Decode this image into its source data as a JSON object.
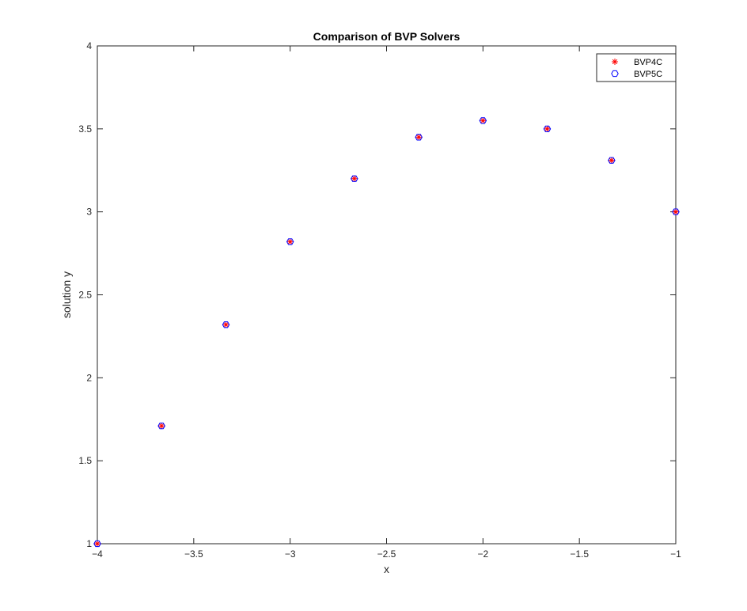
{
  "chart_data": {
    "type": "scatter",
    "title": "Comparison of BVP Solvers",
    "xlabel": "x",
    "ylabel": "solution y",
    "xlim": [
      -4,
      -1
    ],
    "ylim": [
      1,
      4
    ],
    "xticks": [
      -4,
      -3.5,
      -3,
      -2.5,
      -2,
      -1.5,
      -1
    ],
    "xtick_labels": [
      "−4",
      "−3.5",
      "−3",
      "−2.5",
      "−2",
      "−1.5",
      "−1"
    ],
    "yticks": [
      1,
      1.5,
      2,
      2.5,
      3,
      3.5,
      4
    ],
    "ytick_labels": [
      "1",
      "1.5",
      "2",
      "2.5",
      "3",
      "3.5",
      "4"
    ],
    "grid": false,
    "legend_position": "top-right",
    "x": [
      -4,
      -3.667,
      -3.333,
      -3,
      -2.667,
      -2.333,
      -2,
      -1.667,
      -1.333,
      -1
    ],
    "series": [
      {
        "name": "BVP4C",
        "marker": "asterisk",
        "color": "#ff0000",
        "values": [
          1.0,
          1.71,
          2.32,
          2.82,
          3.2,
          3.45,
          3.55,
          3.5,
          3.31,
          3.0
        ]
      },
      {
        "name": "BVP5C",
        "marker": "hexagon",
        "color": "#0000ff",
        "values": [
          1.0,
          1.71,
          2.32,
          2.82,
          3.2,
          3.45,
          3.55,
          3.5,
          3.31,
          3.0
        ]
      }
    ]
  }
}
